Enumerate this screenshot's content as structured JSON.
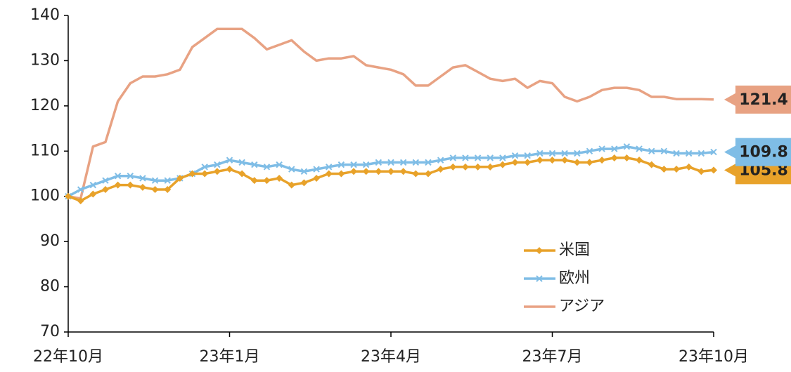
{
  "chart_data": {
    "type": "line",
    "categories": [
      "22年10月",
      null,
      null,
      null,
      null,
      null,
      null,
      null,
      null,
      null,
      null,
      null,
      null,
      "23年1月",
      null,
      null,
      null,
      null,
      null,
      null,
      null,
      null,
      null,
      null,
      null,
      null,
      "23年4月",
      null,
      null,
      null,
      null,
      null,
      null,
      null,
      null,
      null,
      null,
      null,
      null,
      "23年7月",
      null,
      null,
      null,
      null,
      null,
      null,
      null,
      null,
      null,
      null,
      null,
      null,
      "23年10月"
    ],
    "series": [
      {
        "name": "米国",
        "color": "#e8a22a",
        "marker": "diamond",
        "values": [
          100,
          99,
          100.5,
          101.5,
          102.5,
          102.5,
          102,
          101.5,
          101.5,
          104,
          105,
          105,
          105.5,
          106,
          105,
          103.5,
          103.5,
          104,
          102.5,
          103,
          104,
          105,
          105,
          105.5,
          105.5,
          105.5,
          105.5,
          105.5,
          105,
          105,
          106,
          106.5,
          106.5,
          106.5,
          106.5,
          107,
          107.5,
          107.5,
          108,
          108,
          108,
          107.5,
          107.5,
          108,
          108.5,
          108.5,
          108,
          107,
          106,
          106,
          106.5,
          105.5,
          105.8
        ]
      },
      {
        "name": "欧州",
        "color": "#7fbde6",
        "marker": "x",
        "values": [
          100,
          101.5,
          102.5,
          103.5,
          104.5,
          104.5,
          104,
          103.5,
          103.5,
          104,
          105,
          106.5,
          107,
          108,
          107.5,
          107,
          106.5,
          107,
          106,
          105.5,
          106,
          106.5,
          107,
          107,
          107,
          107.5,
          107.5,
          107.5,
          107.5,
          107.5,
          108,
          108.5,
          108.5,
          108.5,
          108.5,
          108.5,
          109,
          109,
          109.5,
          109.5,
          109.5,
          109.5,
          110,
          110.5,
          110.5,
          111,
          110.5,
          110,
          110,
          109.5,
          109.5,
          109.5,
          109.8
        ]
      },
      {
        "name": "アジア",
        "color": "#e8a283",
        "marker": "none",
        "values": [
          100,
          99.5,
          111,
          112,
          121,
          125,
          126.5,
          126.5,
          127,
          128,
          133,
          135,
          137,
          137,
          137,
          135,
          132.5,
          133.5,
          134.5,
          132,
          130,
          130.5,
          130.5,
          131,
          129,
          128.5,
          128,
          127,
          124.5,
          124.5,
          126.5,
          128.5,
          129,
          127.5,
          126,
          125.5,
          126,
          124,
          125.5,
          125,
          122,
          121,
          122,
          123.5,
          124,
          124,
          123.5,
          122,
          122,
          121.5,
          121.5,
          121.5,
          121.4
        ]
      }
    ],
    "ylim": [
      70,
      140
    ],
    "yticks": [
      70,
      80,
      90,
      100,
      110,
      120,
      130,
      140
    ],
    "grid": false,
    "legend": "lower right",
    "end_labels": true
  }
}
